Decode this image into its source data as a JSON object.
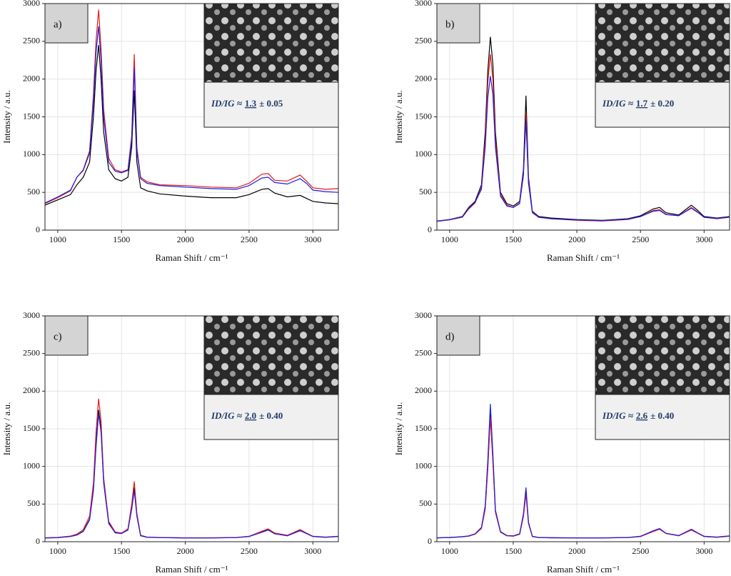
{
  "chart_data": [
    {
      "type": "line",
      "panel_label": "a)",
      "xlabel": "Raman Shift / cm⁻¹",
      "ylabel": "Intensity / a.u.",
      "ratio_label": "ID/IG ≈",
      "ratio_value": "1.3",
      "ratio_error": "± 0.05",
      "xlim": [
        900,
        3200
      ],
      "xticks": [
        1000,
        1500,
        2000,
        2500,
        3000
      ],
      "ylim": [
        0,
        3000
      ],
      "yticks": [
        0,
        500,
        1000,
        1500,
        2000,
        2500,
        3000
      ],
      "grid": true,
      "x": [
        900,
        1000,
        1100,
        1150,
        1200,
        1250,
        1280,
        1300,
        1320,
        1340,
        1360,
        1400,
        1450,
        1500,
        1550,
        1580,
        1600,
        1620,
        1650,
        1700,
        1800,
        2000,
        2200,
        2400,
        2500,
        2600,
        2650,
        2700,
        2800,
        2900,
        2950,
        3000,
        3100,
        3200
      ],
      "series": [
        {
          "color": "#000000",
          "values": [
            330,
            400,
            470,
            600,
            700,
            900,
            1500,
            2100,
            2450,
            2000,
            1300,
            800,
            680,
            650,
            700,
            1100,
            1850,
            900,
            560,
            520,
            480,
            450,
            430,
            430,
            470,
            540,
            550,
            490,
            440,
            460,
            420,
            380,
            360,
            350
          ]
        },
        {
          "color": "#e41a1c",
          "values": [
            350,
            430,
            520,
            700,
            800,
            1050,
            1800,
            2500,
            2920,
            2400,
            1600,
            950,
            800,
            770,
            800,
            1250,
            2330,
            1100,
            700,
            640,
            600,
            590,
            570,
            560,
            620,
            740,
            750,
            660,
            650,
            730,
            650,
            560,
            540,
            550
          ]
        },
        {
          "color": "#1f1fe6",
          "values": [
            360,
            440,
            530,
            700,
            790,
            1020,
            1700,
            2350,
            2700,
            2250,
            1500,
            900,
            780,
            760,
            790,
            1200,
            2150,
            1050,
            680,
            620,
            590,
            570,
            550,
            540,
            590,
            690,
            700,
            630,
            610,
            680,
            620,
            530,
            510,
            500
          ]
        }
      ]
    },
    {
      "type": "line",
      "panel_label": "b)",
      "xlabel": "Raman Shift / cm⁻¹",
      "ylabel": "Intensity / a.u.",
      "ratio_label": "ID/IG ≈",
      "ratio_value": "1.7",
      "ratio_error": "± 0.20",
      "xlim": [
        900,
        3200
      ],
      "xticks": [
        1000,
        1500,
        2000,
        2500,
        3000
      ],
      "ylim": [
        0,
        3000
      ],
      "yticks": [
        0,
        500,
        1000,
        1500,
        2000,
        2500,
        3000
      ],
      "grid": true,
      "x": [
        900,
        1000,
        1100,
        1150,
        1200,
        1250,
        1280,
        1300,
        1320,
        1340,
        1360,
        1400,
        1450,
        1500,
        1550,
        1580,
        1600,
        1620,
        1650,
        1700,
        1800,
        2000,
        2200,
        2400,
        2500,
        2600,
        2650,
        2700,
        2800,
        2900,
        2950,
        3000,
        3100,
        3200
      ],
      "series": [
        {
          "color": "#000000",
          "values": [
            120,
            140,
            180,
            300,
            380,
            600,
            1300,
            2100,
            2560,
            2200,
            1300,
            500,
            350,
            320,
            380,
            800,
            1780,
            700,
            250,
            180,
            160,
            140,
            130,
            150,
            190,
            280,
            300,
            230,
            200,
            330,
            260,
            180,
            160,
            180
          ]
        },
        {
          "color": "#e41a1c",
          "values": [
            115,
            135,
            170,
            280,
            360,
            560,
            1200,
            1950,
            2330,
            2000,
            1200,
            470,
            330,
            300,
            360,
            750,
            1550,
            650,
            240,
            170,
            150,
            130,
            120,
            140,
            180,
            260,
            270,
            210,
            190,
            300,
            240,
            170,
            150,
            170
          ]
        },
        {
          "color": "#1f1fe6",
          "values": [
            118,
            138,
            175,
            290,
            370,
            540,
            1100,
            1750,
            2040,
            1800,
            1100,
            450,
            320,
            300,
            350,
            720,
            1450,
            620,
            230,
            170,
            150,
            135,
            125,
            145,
            180,
            250,
            260,
            205,
            190,
            290,
            235,
            170,
            155,
            175
          ]
        }
      ]
    },
    {
      "type": "line",
      "panel_label": "c)",
      "xlabel": "Raman Shift / cm⁻¹",
      "ylabel": "Intensity / a.u.",
      "ratio_label": "ID/IG ≈",
      "ratio_value": "2.0",
      "ratio_error": "± 0.40",
      "xlim": [
        900,
        3200
      ],
      "xticks": [
        1000,
        1500,
        2000,
        2500,
        3000
      ],
      "ylim": [
        0,
        3000
      ],
      "yticks": [
        0,
        500,
        1000,
        1500,
        2000,
        2500,
        3000
      ],
      "grid": true,
      "x": [
        900,
        1000,
        1100,
        1150,
        1200,
        1250,
        1280,
        1300,
        1320,
        1340,
        1360,
        1400,
        1450,
        1500,
        1550,
        1580,
        1600,
        1620,
        1650,
        1700,
        1800,
        2000,
        2200,
        2400,
        2500,
        2600,
        2650,
        2700,
        2800,
        2900,
        2950,
        3000,
        3100,
        3200
      ],
      "series": [
        {
          "color": "#000000",
          "values": [
            50,
            55,
            70,
            90,
            140,
            300,
            700,
            1300,
            1750,
            1500,
            800,
            250,
            120,
            110,
            160,
            450,
            720,
            350,
            80,
            60,
            55,
            50,
            50,
            55,
            70,
            130,
            160,
            110,
            80,
            150,
            110,
            70,
            60,
            70
          ]
        },
        {
          "color": "#e41a1c",
          "values": [
            52,
            57,
            75,
            100,
            160,
            340,
            780,
            1450,
            1900,
            1600,
            850,
            270,
            130,
            115,
            170,
            500,
            800,
            380,
            85,
            62,
            56,
            52,
            52,
            56,
            72,
            140,
            170,
            115,
            85,
            160,
            115,
            72,
            62,
            72
          ]
        },
        {
          "color": "#1f1fe6",
          "values": [
            48,
            53,
            68,
            88,
            135,
            290,
            680,
            1250,
            1700,
            1450,
            780,
            240,
            118,
            108,
            155,
            430,
            680,
            340,
            78,
            58,
            54,
            49,
            49,
            54,
            68,
            125,
            155,
            105,
            78,
            145,
            108,
            68,
            58,
            68
          ]
        }
      ]
    },
    {
      "type": "line",
      "panel_label": "d)",
      "xlabel": "Raman Shift / cm⁻¹",
      "ylabel": "Intensity / a.u.",
      "ratio_label": "ID/IG ≈",
      "ratio_value": "2.6",
      "ratio_error": "± 0.40",
      "xlim": [
        900,
        3200
      ],
      "xticks": [
        1000,
        1500,
        2000,
        2500,
        3000
      ],
      "ylim": [
        0,
        3000
      ],
      "yticks": [
        0,
        500,
        1000,
        1500,
        2000,
        2500,
        3000
      ],
      "grid": true,
      "x": [
        900,
        1000,
        1100,
        1150,
        1200,
        1250,
        1280,
        1300,
        1320,
        1340,
        1360,
        1400,
        1450,
        1500,
        1550,
        1580,
        1600,
        1620,
        1650,
        1700,
        1800,
        2000,
        2200,
        2400,
        2500,
        2600,
        2650,
        2700,
        2800,
        2900,
        2950,
        3000,
        3100,
        3200
      ],
      "series": [
        {
          "color": "#000000",
          "values": [
            50,
            55,
            65,
            75,
            100,
            180,
            450,
            1000,
            1700,
            1100,
            400,
            130,
            80,
            75,
            100,
            350,
            680,
            250,
            70,
            55,
            52,
            50,
            50,
            55,
            70,
            140,
            170,
            110,
            80,
            160,
            115,
            70,
            60,
            75
          ]
        },
        {
          "color": "#e41a1c",
          "values": [
            50,
            55,
            65,
            75,
            100,
            175,
            430,
            960,
            1650,
            1060,
            390,
            125,
            78,
            73,
            98,
            330,
            630,
            240,
            68,
            54,
            51,
            49,
            49,
            54,
            68,
            135,
            165,
            108,
            78,
            155,
            112,
            68,
            58,
            73
          ]
        },
        {
          "color": "#1f1fe6",
          "values": [
            52,
            57,
            67,
            78,
            105,
            190,
            480,
            1080,
            1830,
            1180,
            420,
            135,
            82,
            78,
            105,
            370,
            720,
            260,
            72,
            56,
            53,
            51,
            51,
            56,
            72,
            145,
            175,
            112,
            82,
            165,
            118,
            72,
            62,
            78
          ]
        }
      ]
    }
  ]
}
